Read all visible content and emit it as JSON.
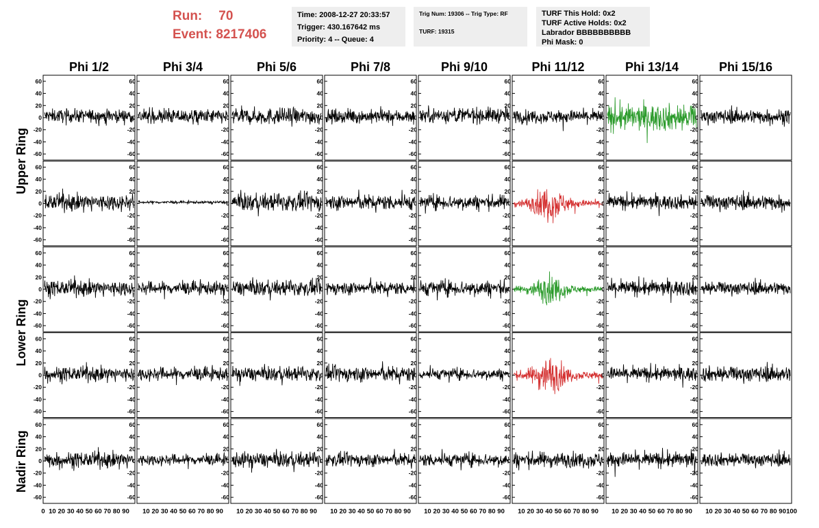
{
  "header": {
    "run_label": "Run:",
    "run_value": "70",
    "event_label": "Event:",
    "event_value": "8217406"
  },
  "info_box_1": {
    "time": "Time: 2008-12-27 20:33:57",
    "trigger": "Trigger: 430.167642 ms",
    "priority": "Priority: 4 -- Queue: 4"
  },
  "info_box_2": {
    "trig": "Trig Num: 19306 -- Trig Type: RF",
    "turf": "TURF: 19315"
  },
  "info_box_3": {
    "hold": "TURF This Hold: 0x2",
    "active": "TURF Active Holds: 0x2",
    "labrador": "Labrador BBBBBBBBBB",
    "phi_mask": "Phi Mask: 0"
  },
  "chart_data": {
    "type": "line",
    "columns": [
      "Phi 1/2",
      "Phi 3/4",
      "Phi 5/6",
      "Phi 7/8",
      "Phi 9/10",
      "Phi 11/12",
      "Phi 13/14",
      "Phi 15/16"
    ],
    "rows": [
      "Upper Ring",
      "Upper Ring",
      "Lower Ring",
      "Lower Ring",
      "Nadir Ring"
    ],
    "row_labels": [
      "Upper Ring",
      "Lower Ring",
      "Nadir Ring"
    ],
    "xlim": [
      0,
      100
    ],
    "ylim": [
      -70,
      70
    ],
    "y_ticks": [
      -60,
      -40,
      -20,
      0,
      20,
      40,
      60
    ],
    "x_ticks": [
      0,
      10,
      20,
      30,
      40,
      50,
      60,
      70,
      80,
      90,
      100
    ],
    "n_samples": 256,
    "colors": {
      "default": "#000000",
      "triggered": "#2a9a2a",
      "alt": "#d43030"
    },
    "waveforms": [
      [
        {
          "amp": 12,
          "mean": 3
        },
        {
          "amp": 13,
          "mean": 2
        },
        {
          "amp": 15,
          "mean": 2
        },
        {
          "amp": 12,
          "mean": 2
        },
        {
          "amp": 14,
          "mean": 4
        },
        {
          "amp": 12,
          "mean": 2
        },
        {
          "amp": 24,
          "mean": 0,
          "color": "triggered"
        },
        {
          "amp": 13,
          "mean": 2
        }
      ],
      [
        {
          "amp": 15,
          "mean": 2
        },
        {
          "amp": 2.5,
          "mean": 2
        },
        {
          "amp": 16,
          "mean": 2
        },
        {
          "amp": 14,
          "mean": 2
        },
        {
          "amp": 13,
          "mean": 2
        },
        {
          "amp": 26,
          "mean": 0,
          "color": "alt",
          "burst": true
        },
        {
          "amp": 13,
          "mean": 2
        },
        {
          "amp": 14,
          "mean": 2
        }
      ],
      [
        {
          "amp": 14,
          "mean": 2
        },
        {
          "amp": 12,
          "mean": 2
        },
        {
          "amp": 14,
          "mean": 2
        },
        {
          "amp": 12,
          "mean": 2
        },
        {
          "amp": 14,
          "mean": 2
        },
        {
          "amp": 22,
          "mean": 0,
          "color": "triggered",
          "burst": true
        },
        {
          "amp": 14,
          "mean": 2
        },
        {
          "amp": 12,
          "mean": 2
        }
      ],
      [
        {
          "amp": 13,
          "mean": 2
        },
        {
          "amp": 12,
          "mean": 2
        },
        {
          "amp": 13,
          "mean": 2
        },
        {
          "amp": 14,
          "mean": 2
        },
        {
          "amp": 10,
          "mean": 2
        },
        {
          "amp": 28,
          "mean": 0,
          "color": "alt",
          "burst": true
        },
        {
          "amp": 13,
          "mean": 2
        },
        {
          "amp": 14,
          "mean": 2
        }
      ],
      [
        {
          "amp": 14,
          "mean": 2
        },
        {
          "amp": 10,
          "mean": 2
        },
        {
          "amp": 14,
          "mean": 2
        },
        {
          "amp": 12,
          "mean": 2
        },
        {
          "amp": 12,
          "mean": 2
        },
        {
          "amp": 14,
          "mean": 2
        },
        {
          "amp": 14,
          "mean": 2
        },
        {
          "amp": 12,
          "mean": 2
        }
      ]
    ]
  }
}
